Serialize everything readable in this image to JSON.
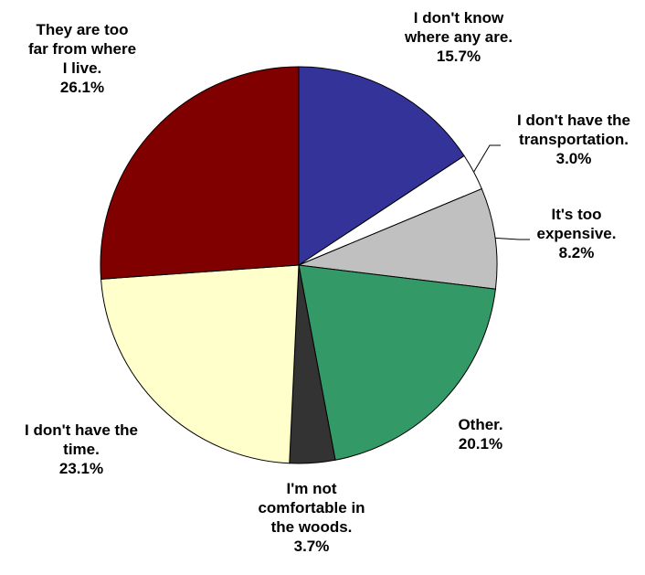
{
  "chart_data": {
    "type": "pie",
    "title": "",
    "start_angle_deg": 0,
    "direction": "clockwise",
    "slices": [
      {
        "label_lines": [
          "I don't know",
          "where any are."
        ],
        "pct_label": "15.7%",
        "value": 15.7,
        "color": "#333399",
        "leader": false
      },
      {
        "label_lines": [
          "I don't have the",
          "transportation."
        ],
        "pct_label": "3.0%",
        "value": 3.0,
        "color": "#ffffff",
        "leader": true
      },
      {
        "label_lines": [
          "It's too",
          "expensive."
        ],
        "pct_label": "8.2%",
        "value": 8.2,
        "color": "#c0c0c0",
        "leader": true
      },
      {
        "label_lines": [
          "Other."
        ],
        "pct_label": "20.1%",
        "value": 20.1,
        "color": "#339966",
        "leader": false
      },
      {
        "label_lines": [
          "I'm not",
          "comfortable in",
          "the woods."
        ],
        "pct_label": "3.7%",
        "value": 3.7,
        "color": "#333333",
        "leader": false
      },
      {
        "label_lines": [
          "I don't have the",
          "time."
        ],
        "pct_label": "23.1%",
        "value": 23.1,
        "color": "#ffffcc",
        "leader": false
      },
      {
        "label_lines": [
          "They are too",
          "far from where",
          "I live."
        ],
        "pct_label": "26.1%",
        "value": 26.1,
        "color": "#800000",
        "leader": false
      }
    ]
  }
}
